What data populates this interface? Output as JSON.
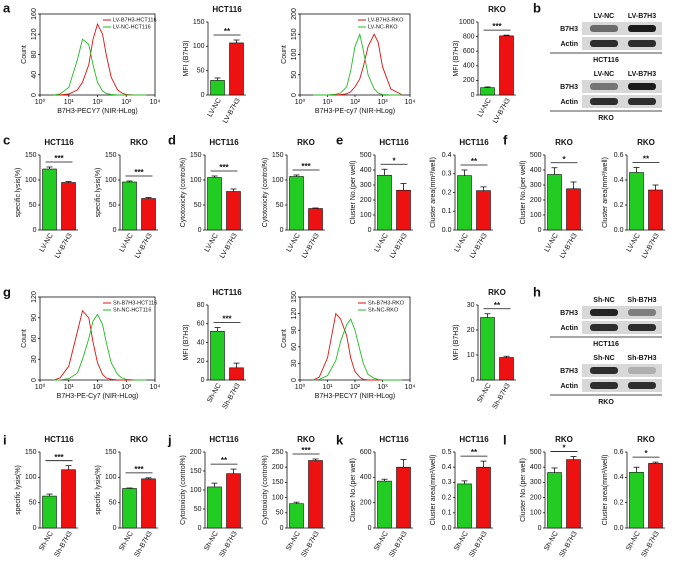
{
  "panel_letters": [
    "a",
    "b",
    "c",
    "d",
    "e",
    "f",
    "g",
    "h",
    "i",
    "j",
    "k",
    "l"
  ],
  "blots": [
    {
      "lanes": [
        "LV-NC",
        "LV-B7H3"
      ],
      "rows": [
        "B7H3",
        "Actin"
      ],
      "cell_line": "HCT116"
    },
    {
      "lanes": [
        "LV-NC",
        "LV-B7H3"
      ],
      "rows": [
        "B7H3",
        "Actin"
      ],
      "cell_line": "RKO"
    },
    {
      "lanes": [
        "Sh-NC",
        "Sh-B7H3"
      ],
      "rows": [
        "B7H3",
        "Actin"
      ],
      "cell_line": "HCT116"
    },
    {
      "lanes": [
        "Sh-NC",
        "Sh-B7H3"
      ],
      "rows": [
        "B7H3",
        "Actin"
      ],
      "cell_line": "RKO"
    }
  ],
  "chart_data": [
    {
      "type": "line",
      "xlabel": "B7H3-PECY7 (NIR-HLog)",
      "ylabel": "Count",
      "xlog": true,
      "x": [
        3,
        5,
        10,
        20,
        30,
        50,
        70,
        100,
        150,
        200,
        300,
        500,
        700,
        1000,
        2000,
        5000
      ],
      "series": [
        {
          "name": "LV-B7H3-HCT116",
          "color": "#dd1111",
          "values": [
            0,
            0,
            2,
            10,
            25,
            60,
            110,
            140,
            120,
            80,
            35,
            10,
            4,
            1,
            0,
            0
          ]
        },
        {
          "name": "LV-NC-HCT116",
          "color": "#22bb22",
          "values": [
            0,
            2,
            15,
            70,
            110,
            100,
            60,
            25,
            8,
            3,
            1,
            0,
            0,
            0,
            0,
            0
          ]
        }
      ],
      "xlim": [
        1,
        10000
      ],
      "xticks": [
        {
          "value": 1,
          "label": "10⁰"
        },
        {
          "value": 10,
          "label": "10¹"
        },
        {
          "value": 100,
          "label": "10²"
        },
        {
          "value": 1000,
          "label": "10³"
        },
        {
          "value": 10000,
          "label": "10⁴"
        }
      ],
      "ylim": [
        0,
        160
      ],
      "yticks": [
        0,
        40,
        80,
        120,
        160
      ],
      "legend": "upper right"
    },
    {
      "type": "bar",
      "title": "HCT116",
      "ylabel": "MFI (B7H3)",
      "categories": [
        "LV-NC",
        "LV-B7H3"
      ],
      "values": [
        30,
        107
      ],
      "errors": [
        5,
        6
      ],
      "colors": [
        "#22cc22",
        "#ee1111"
      ],
      "significance": "**",
      "ylim": [
        0,
        150
      ],
      "yticks": [
        0,
        50,
        100,
        150
      ]
    },
    {
      "type": "line",
      "xlabel": "B7H3-PE-cy7 (NIR-HLog)",
      "ylabel": "Count",
      "xlog": true,
      "x": [
        3,
        5,
        10,
        20,
        30,
        50,
        70,
        100,
        150,
        200,
        300,
        500,
        700,
        1000,
        2000,
        5000
      ],
      "series": [
        {
          "name": "LV-B7H3-RKO",
          "color": "#dd1111",
          "values": [
            0,
            0,
            0,
            0,
            1,
            3,
            8,
            20,
            40,
            70,
            120,
            150,
            130,
            70,
            15,
            1
          ]
        },
        {
          "name": "LV-NC-RKO",
          "color": "#22bb22",
          "values": [
            0,
            0,
            0,
            2,
            5,
            20,
            60,
            120,
            150,
            110,
            50,
            15,
            5,
            1,
            0,
            0
          ]
        }
      ],
      "xlim": [
        1,
        10000
      ],
      "xticks": [
        {
          "value": 1,
          "label": "10⁰"
        },
        {
          "value": 10,
          "label": "10¹"
        },
        {
          "value": 100,
          "label": "10²"
        },
        {
          "value": 1000,
          "label": "10³"
        },
        {
          "value": 10000,
          "label": "10⁴"
        }
      ],
      "ylim": [
        0,
        200
      ],
      "yticks": [
        0,
        50,
        100,
        150,
        200
      ],
      "legend": "upper right"
    },
    {
      "type": "bar",
      "title": "RKO",
      "ylabel": "MFI (B7H3)",
      "categories": [
        "LV-NC",
        "LV-B7H3"
      ],
      "values": [
        100,
        810
      ],
      "errors": [
        10,
        10
      ],
      "colors": [
        "#22cc22",
        "#ee1111"
      ],
      "significance": "***",
      "ylim": [
        0,
        1000
      ],
      "yticks": [
        0,
        200,
        400,
        600,
        800,
        1000
      ]
    },
    {
      "type": "bar",
      "title": "HCT116",
      "ylabel": "specific lysis(%)",
      "categories": [
        "LV-NC",
        "LV-B7H3"
      ],
      "values": [
        122,
        95
      ],
      "errors": [
        4,
        2
      ],
      "colors": [
        "#22cc22",
        "#ee1111"
      ],
      "significance": "***",
      "ylim": [
        0,
        150
      ],
      "yticks": [
        0,
        50,
        100,
        150
      ]
    },
    {
      "type": "bar",
      "title": "RKO",
      "ylabel": "specific lysis(%)",
      "categories": [
        "LV-NC",
        "LV-B7H3"
      ],
      "values": [
        96,
        63
      ],
      "errors": [
        2,
        2
      ],
      "colors": [
        "#22cc22",
        "#ee1111"
      ],
      "significance": "***",
      "ylim": [
        0,
        150
      ],
      "yticks": [
        0,
        50,
        100,
        150
      ]
    },
    {
      "type": "bar",
      "title": "HCT116",
      "ylabel": "Cytotoxicity (control%)",
      "categories": [
        "LV-NC",
        "LV-B7H3"
      ],
      "values": [
        105,
        77
      ],
      "errors": [
        3,
        5
      ],
      "colors": [
        "#22cc22",
        "#ee1111"
      ],
      "significance": "***",
      "ylim": [
        0,
        150
      ],
      "yticks": [
        0,
        50,
        100,
        150
      ]
    },
    {
      "type": "bar",
      "title": "RKO",
      "ylabel": "Cytotoxicity (control%)",
      "categories": [
        "LV-NC",
        "LV-B7H3"
      ],
      "values": [
        107,
        43
      ],
      "errors": [
        3,
        1
      ],
      "colors": [
        "#22cc22",
        "#ee1111"
      ],
      "significance": "***",
      "ylim": [
        0,
        150
      ],
      "yticks": [
        0,
        50,
        100,
        150
      ]
    },
    {
      "type": "bar",
      "title": "HCT116",
      "ylabel": "Cluster No.(per well)",
      "categories": [
        "LV-NC",
        "LV-B7H3"
      ],
      "values": [
        365,
        265
      ],
      "errors": [
        40,
        45
      ],
      "colors": [
        "#22cc22",
        "#ee1111"
      ],
      "significance": "*",
      "ylim": [
        0,
        500
      ],
      "yticks": [
        0,
        100,
        200,
        300,
        400,
        500
      ]
    },
    {
      "type": "bar",
      "title": "HCT116",
      "ylabel": "Cluster area(mm²/well)",
      "categories": [
        "LV-NC",
        "LV-B7H3"
      ],
      "values": [
        0.29,
        0.21
      ],
      "errors": [
        0.03,
        0.02
      ],
      "colors": [
        "#22cc22",
        "#ee1111"
      ],
      "significance": "**",
      "ylim": [
        0,
        0.4
      ],
      "yticks": [
        {
          "value": 0,
          "label": "0.0"
        },
        0.1,
        0.2,
        0.3,
        0.4
      ]
    },
    {
      "type": "bar",
      "title": "RKO",
      "ylabel": "Cluster No.(per well)",
      "categories": [
        "LV-NC",
        "LV-B7H3"
      ],
      "values": [
        370,
        275
      ],
      "errors": [
        45,
        45
      ],
      "colors": [
        "#22cc22",
        "#ee1111"
      ],
      "significance": "*",
      "ylim": [
        0,
        500
      ],
      "yticks": [
        0,
        100,
        200,
        300,
        400,
        500
      ]
    },
    {
      "type": "bar",
      "title": "RKO",
      "ylabel": "Cluster area(mm²/well)",
      "categories": [
        "LV-NC",
        "LV-B7H3"
      ],
      "values": [
        0.46,
        0.32
      ],
      "errors": [
        0.04,
        0.04
      ],
      "colors": [
        "#22cc22",
        "#ee1111"
      ],
      "significance": "**",
      "ylim": [
        0,
        0.6
      ],
      "yticks": [
        {
          "value": 0,
          "label": "0.0"
        },
        0.2,
        0.4,
        0.6
      ]
    },
    {
      "type": "line",
      "xlabel": "B7H3-PE-Cy7 (NIR-HLog)",
      "ylabel": "Count",
      "xlog": true,
      "x": [
        3,
        5,
        10,
        20,
        30,
        50,
        70,
        100,
        150,
        200,
        300,
        500,
        700,
        1000,
        2000,
        5000
      ],
      "series": [
        {
          "name": "Sh-B7H3-HCT116",
          "color": "#dd1111",
          "values": [
            0,
            3,
            20,
            70,
            100,
            90,
            55,
            25,
            8,
            3,
            1,
            0,
            0,
            0,
            0,
            0
          ]
        },
        {
          "name": "Sh-NC-HCT116",
          "color": "#22bb22",
          "values": [
            0,
            0,
            2,
            10,
            30,
            60,
            85,
            95,
            80,
            55,
            25,
            8,
            3,
            1,
            0,
            0
          ]
        }
      ],
      "xlim": [
        1,
        10000
      ],
      "xticks": [
        {
          "value": 1,
          "label": "10⁰"
        },
        {
          "value": 10,
          "label": "10¹"
        },
        {
          "value": 100,
          "label": "10²"
        },
        {
          "value": 1000,
          "label": "10³"
        },
        {
          "value": 10000,
          "label": "10⁴"
        }
      ],
      "ylim": [
        0,
        120
      ],
      "yticks": [
        0,
        30,
        60,
        90,
        120
      ],
      "legend": "upper right"
    },
    {
      "type": "bar",
      "title": "HCT116",
      "ylabel": "MFI (B7H3)",
      "categories": [
        "Sh-NC",
        "Sh-B7H3"
      ],
      "values": [
        52,
        13
      ],
      "errors": [
        4,
        5
      ],
      "colors": [
        "#22cc22",
        "#ee1111"
      ],
      "significance": "***",
      "ylim": [
        0,
        80
      ],
      "yticks": [
        0,
        20,
        40,
        60,
        80
      ]
    },
    {
      "type": "line",
      "xlabel": "B7H3-PECY7 (NIR-HLog)",
      "ylabel": "Count",
      "xlog": true,
      "x": [
        3,
        5,
        10,
        20,
        30,
        50,
        70,
        100,
        150,
        200,
        300,
        500,
        700,
        1000,
        2000,
        5000
      ],
      "series": [
        {
          "name": "Sh-B7H3-RKO",
          "color": "#dd1111",
          "values": [
            0,
            5,
            40,
            120,
            110,
            80,
            40,
            15,
            5,
            1,
            0,
            0,
            0,
            0,
            0,
            0
          ]
        },
        {
          "name": "Sh-NC-RKO",
          "color": "#22bb22",
          "values": [
            0,
            1,
            8,
            35,
            70,
            100,
            110,
            90,
            55,
            30,
            10,
            3,
            1,
            0,
            0,
            0
          ]
        }
      ],
      "xlim": [
        1,
        10000
      ],
      "xticks": [
        {
          "value": 1,
          "label": "10⁰"
        },
        {
          "value": 10,
          "label": "10¹"
        },
        {
          "value": 100,
          "label": "10²"
        },
        {
          "value": 1000,
          "label": "10³"
        },
        {
          "value": 10000,
          "label": "10⁴"
        }
      ],
      "ylim": [
        0,
        150
      ],
      "yticks": [
        0,
        30,
        60,
        90,
        120,
        150
      ],
      "legend": "upper right"
    },
    {
      "type": "bar",
      "title": "RKO",
      "ylabel": "MFI (B7H3)",
      "categories": [
        "Sh-NC",
        "Sh-B7H3"
      ],
      "values": [
        25,
        9
      ],
      "errors": [
        1.5,
        0.5
      ],
      "colors": [
        "#22cc22",
        "#ee1111"
      ],
      "significance": "**",
      "ylim": [
        0,
        30
      ],
      "yticks": [
        0,
        10,
        20,
        30
      ]
    },
    {
      "type": "bar",
      "title": "HCT116",
      "ylabel": "specific lysis(%)",
      "categories": [
        "Sh-NC",
        "Sh-B7H3"
      ],
      "values": [
        63,
        115
      ],
      "errors": [
        4,
        8
      ],
      "colors": [
        "#22cc22",
        "#ee1111"
      ],
      "significance": "***",
      "ylim": [
        0,
        150
      ],
      "yticks": [
        0,
        50,
        100,
        150
      ]
    },
    {
      "type": "bar",
      "title": "RKO",
      "ylabel": "specific lysis(%)",
      "categories": [
        "Sh-NC",
        "Sh-B7H3"
      ],
      "values": [
        78,
        97
      ],
      "errors": [
        1,
        2
      ],
      "colors": [
        "#22cc22",
        "#ee1111"
      ],
      "significance": "***",
      "ylim": [
        0,
        150
      ],
      "yticks": [
        0,
        50,
        100,
        150
      ]
    },
    {
      "type": "bar",
      "title": "HCT116",
      "ylabel": "Cytotoxicity (control%)",
      "categories": [
        "Sh-NC",
        "Sh-B7H3"
      ],
      "values": [
        108,
        143
      ],
      "errors": [
        10,
        12
      ],
      "colors": [
        "#22cc22",
        "#ee1111"
      ],
      "significance": "**",
      "ylim": [
        0,
        200
      ],
      "yticks": [
        0,
        50,
        100,
        150,
        200
      ]
    },
    {
      "type": "bar",
      "title": "RKO",
      "ylabel": "Cytotoxicity (control%)",
      "categories": [
        "Sh-NC",
        "Sh-B7H3"
      ],
      "values": [
        80,
        222
      ],
      "errors": [
        5,
        5
      ],
      "colors": [
        "#22cc22",
        "#ee1111"
      ],
      "significance": "***",
      "ylim": [
        0,
        250
      ],
      "yticks": [
        0,
        50,
        100,
        150,
        200,
        250
      ]
    },
    {
      "type": "bar",
      "title": "HCT116",
      "ylabel": "Cluster No.(per well)",
      "categories": [
        "Sh-NC",
        "Sh-B7H3"
      ],
      "values": [
        370,
        480
      ],
      "errors": [
        15,
        60
      ],
      "colors": [
        "#22cc22",
        "#ee1111"
      ],
      "ylim": [
        0,
        600
      ],
      "yticks": [
        0,
        200,
        400,
        600
      ]
    },
    {
      "type": "bar",
      "title": "HCT116",
      "ylabel": "Cluster area(mm²/well)",
      "categories": [
        "Sh-NC",
        "Sh-B7H3"
      ],
      "values": [
        0.29,
        0.4
      ],
      "errors": [
        0.02,
        0.04
      ],
      "colors": [
        "#22cc22",
        "#ee1111"
      ],
      "significance": "**",
      "ylim": [
        0,
        0.5
      ],
      "yticks": [
        {
          "value": 0,
          "label": "0.0"
        },
        0.1,
        0.2,
        0.3,
        0.4,
        0.5
      ]
    },
    {
      "type": "bar",
      "title": "RKO",
      "ylabel": "Cluster No.(per well)",
      "categories": [
        "Sh-NC",
        "Sh-B7H3"
      ],
      "values": [
        365,
        450
      ],
      "errors": [
        30,
        20
      ],
      "colors": [
        "#22cc22",
        "#ee1111"
      ],
      "significance": "*",
      "ylim": [
        0,
        500
      ],
      "yticks": [
        0,
        100,
        200,
        300,
        400,
        500
      ]
    },
    {
      "type": "bar",
      "title": "RKO",
      "ylabel": "Cluster area(mm²/well)",
      "categories": [
        "Sh-NC",
        "Sh-B7H3"
      ],
      "values": [
        0.44,
        0.51
      ],
      "errors": [
        0.04,
        0.01
      ],
      "colors": [
        "#22cc22",
        "#ee1111"
      ],
      "significance": "*",
      "ylim": [
        0,
        0.6
      ],
      "yticks": [
        {
          "value": 0,
          "label": "0.0"
        },
        0.2,
        0.4,
        0.6
      ]
    }
  ]
}
